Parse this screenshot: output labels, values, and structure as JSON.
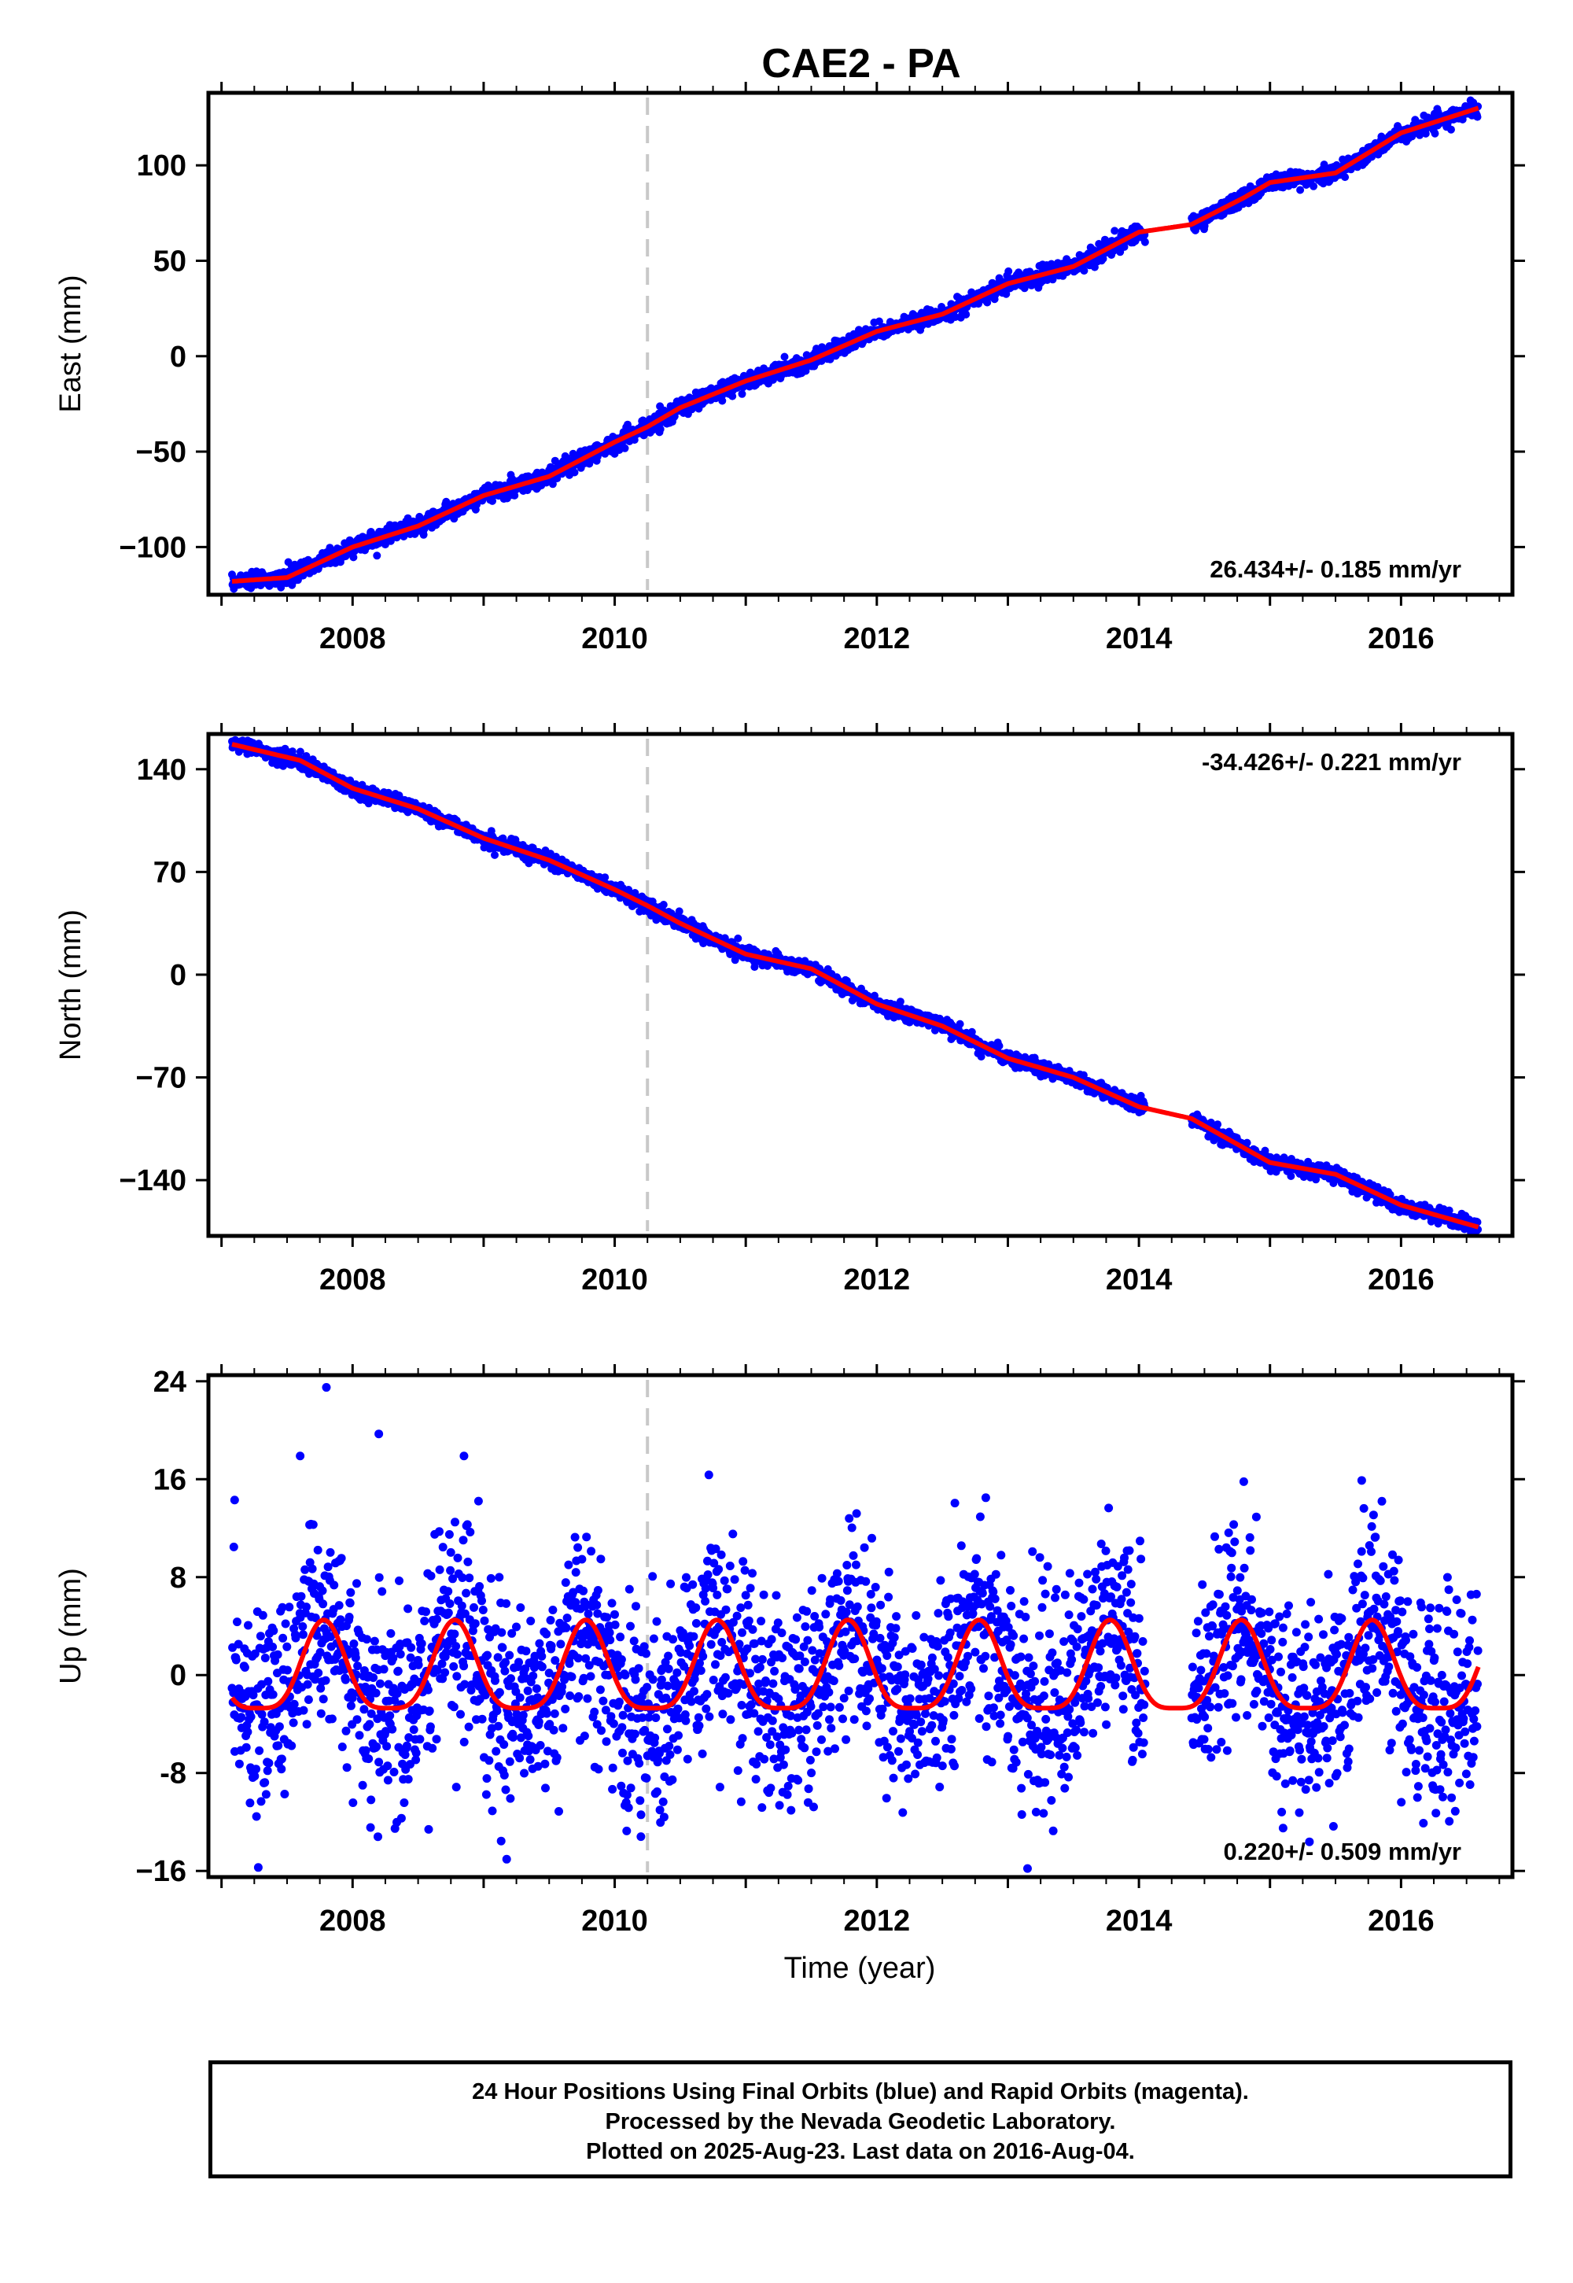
{
  "colors": {
    "data_points": "#0000ff",
    "model": "#ff0000",
    "event_line": "#c8c8c8",
    "axes": "#000000"
  },
  "chart_data": {
    "title": "CAE2 - PA",
    "type": "scatter",
    "xlabel": "Time (year)",
    "xlim": [
      2006.9,
      2016.85
    ],
    "x_ticks": [
      2008,
      2010,
      2012,
      2014,
      2016
    ],
    "event_line_x": 2010.25,
    "data_start": 2007.08,
    "data_end": 2016.59,
    "data_gaps": [
      [
        2014.05,
        2014.4
      ]
    ],
    "panels": [
      {
        "id": "east",
        "ylabel": "East (mm)",
        "ylim": [
          -125,
          138
        ],
        "yticks": [
          -100,
          -50,
          0,
          50,
          100
        ],
        "ytick_labels": [
          "−100",
          "−50",
          "0",
          "50",
          "100"
        ],
        "velocity_label": "26.434+/- 0.185 mm/yr",
        "velocity_position": "bottom-right",
        "series": [
          {
            "name": "",
            "kind": "model-line",
            "x": [
              2007.08,
              2007.5,
              2008.0,
              2008.5,
              2009.0,
              2009.5,
              2010.0,
              2010.25,
              2010.5,
              2011.0,
              2011.5,
              2012.0,
              2012.5,
              2013.0,
              2013.5,
              2014.0,
              2014.4,
              2014.8,
              2015.0,
              2015.5,
              2016.0,
              2016.59
            ],
            "y": [
              -118,
              -116,
              -100,
              -89,
              -73,
              -63,
              -45,
              -37,
              -27,
              -13,
              -2,
              13,
              22,
              38,
              47,
              65,
              69,
              83,
              91,
              96,
              117,
              130
            ]
          },
          {
            "name": "",
            "kind": "daily-positions",
            "noise_sd": 2.2,
            "count": 2700
          }
        ]
      },
      {
        "id": "north",
        "ylabel": "North (mm)",
        "ylim": [
          -178,
          164
        ],
        "yticks": [
          -140,
          -70,
          0,
          70,
          140
        ],
        "ytick_labels": [
          "−140",
          "−70",
          "0",
          "70",
          "140"
        ],
        "velocity_label": "-34.426+/- 0.221 mm/yr",
        "velocity_position": "top-right",
        "series": [
          {
            "name": "",
            "kind": "model-line",
            "x": [
              2007.08,
              2007.6,
              2008.0,
              2008.5,
              2009.0,
              2009.5,
              2010.0,
              2010.25,
              2010.5,
              2011.0,
              2011.5,
              2012.0,
              2012.5,
              2013.0,
              2013.5,
              2014.0,
              2014.4,
              2015.0,
              2015.5,
              2016.0,
              2016.59
            ],
            "y": [
              157,
              146,
              127,
              113,
              93,
              78,
              58,
              47,
              35,
              14,
              4,
              -20,
              -35,
              -57,
              -70,
              -90,
              -98,
              -128,
              -136,
              -157,
              -172
            ]
          },
          {
            "name": "",
            "kind": "daily-positions",
            "noise_sd": 2.5,
            "count": 2700
          }
        ]
      },
      {
        "id": "up",
        "ylabel": "Up (mm)",
        "ylim": [
          -16.5,
          24.5
        ],
        "yticks": [
          -16,
          -8,
          0,
          8,
          16,
          24
        ],
        "ytick_labels": [
          "−16",
          "-8",
          "0",
          "8",
          "16",
          "24"
        ],
        "velocity_label": "0.220+/- 0.509 mm/yr",
        "velocity_position": "bottom-right",
        "series": [
          {
            "name": "",
            "kind": "model-line",
            "annual_amplitude": 3.6,
            "annual_peak": 0.78,
            "semiannual_amplitude": 0.9,
            "offset": 0.0
          },
          {
            "name": "",
            "kind": "daily-positions",
            "noise_sd": 4.3,
            "count": 2700,
            "outliers": [
              [
                2007.8,
                23.5
              ],
              [
                2008.2,
                19.7
              ],
              [
                2007.6,
                17.9
              ],
              [
                2008.85,
                17.9
              ],
              [
                2007.1,
                14.3
              ],
              [
                2014.8,
                15.8
              ],
              [
                2015.7,
                15.9
              ],
              [
                2013.15,
                -15.8
              ],
              [
                2010.2,
                -13.2
              ],
              [
                2015.1,
                -12.5
              ]
            ]
          }
        ]
      }
    ]
  },
  "footer": {
    "line1": "24 Hour Positions Using Final Orbits (blue) and Rapid Orbits (magenta).",
    "line2": "Processed by the Nevada Geodetic Laboratory.",
    "line3": "Plotted on 2025-Aug-23. Last data on 2016-Aug-04."
  }
}
